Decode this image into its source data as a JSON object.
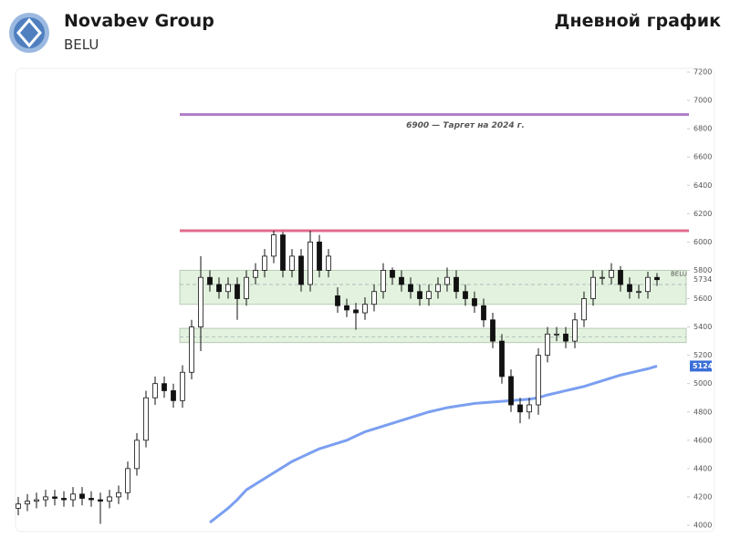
{
  "header": {
    "title": "Novabev Group",
    "ticker": "BELU",
    "chart_label": "Дневной график"
  },
  "chart_data": {
    "type": "candlestick",
    "symbol": "BELU",
    "ylim": [
      4000,
      7200
    ],
    "yticks": [
      4000,
      4200,
      4400,
      4600,
      4800,
      5000,
      5200,
      5400,
      5600,
      5800,
      6000,
      6200,
      6400,
      6600,
      6800,
      7000,
      7200
    ],
    "open": [
      4120,
      4150,
      4170,
      4180,
      4200,
      4190,
      4180,
      4220,
      4190,
      4180,
      4170,
      4200,
      4230,
      4400,
      4600,
      4900,
      5000,
      4950,
      4880,
      5080,
      5400,
      5750,
      5700,
      5650,
      5700,
      5600,
      5750,
      5800,
      5900,
      6050,
      5800,
      5900,
      5700,
      6000,
      5800,
      5620,
      5550,
      5520,
      5500,
      5560,
      5650,
      5800,
      5750,
      5700,
      5650,
      5600,
      5650,
      5700,
      5750,
      5650,
      5600,
      5550,
      5450,
      5300,
      5050,
      4850,
      4800,
      4850,
      5200,
      5350,
      5350,
      5300,
      5450,
      5600,
      5750,
      5750,
      5800,
      5700,
      5650,
      5650,
      5750
    ],
    "high": [
      4200,
      4220,
      4230,
      4250,
      4250,
      4240,
      4270,
      4270,
      4240,
      4230,
      4250,
      4280,
      4450,
      4650,
      4950,
      5050,
      5050,
      5000,
      5130,
      5450,
      5900,
      5800,
      5750,
      5750,
      5750,
      5800,
      5850,
      5950,
      6080,
      6070,
      5950,
      5950,
      6080,
      6050,
      5950,
      5680,
      5600,
      5570,
      5610,
      5700,
      5850,
      5820,
      5800,
      5750,
      5700,
      5700,
      5750,
      5820,
      5800,
      5700,
      5650,
      5600,
      5500,
      5350,
      5100,
      4900,
      4900,
      5250,
      5400,
      5400,
      5400,
      5500,
      5650,
      5800,
      5800,
      5850,
      5830,
      5750,
      5700,
      5790,
      5780
    ],
    "low": [
      4070,
      4100,
      4120,
      4130,
      4140,
      4130,
      4130,
      4140,
      4130,
      4010,
      4120,
      4150,
      4180,
      4350,
      4550,
      4850,
      4900,
      4830,
      4830,
      5030,
      5230,
      5650,
      5600,
      5600,
      5450,
      5550,
      5700,
      5750,
      5850,
      5750,
      5750,
      5650,
      5650,
      5750,
      5750,
      5500,
      5470,
      5380,
      5450,
      5510,
      5600,
      5700,
      5650,
      5600,
      5550,
      5550,
      5600,
      5650,
      5600,
      5550,
      5500,
      5400,
      5250,
      5000,
      4800,
      4720,
      4750,
      4780,
      5150,
      5300,
      5250,
      5250,
      5400,
      5550,
      5700,
      5700,
      5650,
      5600,
      5600,
      5600,
      5690
    ],
    "close": [
      4150,
      4170,
      4180,
      4200,
      4190,
      4180,
      4220,
      4190,
      4180,
      4170,
      4200,
      4230,
      4400,
      4600,
      4900,
      5000,
      4950,
      4880,
      5080,
      5400,
      5750,
      5700,
      5650,
      5700,
      5600,
      5750,
      5800,
      5900,
      6050,
      5800,
      5900,
      5700,
      6000,
      5800,
      5900,
      5550,
      5520,
      5500,
      5560,
      5650,
      5800,
      5750,
      5700,
      5650,
      5600,
      5650,
      5700,
      5750,
      5650,
      5600,
      5550,
      5450,
      5300,
      5050,
      4850,
      4800,
      4850,
      5200,
      5350,
      5350,
      5300,
      5450,
      5600,
      5750,
      5750,
      5800,
      5700,
      5650,
      5650,
      5750,
      5734
    ],
    "ma": {
      "color": "#7b9ff0",
      "values": [
        null,
        null,
        null,
        null,
        null,
        null,
        null,
        null,
        null,
        null,
        null,
        null,
        null,
        null,
        null,
        null,
        null,
        null,
        null,
        null,
        null,
        4020,
        4070,
        4120,
        4180,
        4250,
        4290,
        4330,
        4370,
        4410,
        4450,
        4480,
        4510,
        4540,
        4560,
        4580,
        4600,
        4630,
        4660,
        4680,
        4700,
        4720,
        4740,
        4760,
        4780,
        4800,
        4815,
        4830,
        4840,
        4850,
        4860,
        4865,
        4870,
        4875,
        4880,
        4885,
        4890,
        4900,
        4920,
        4935,
        4950,
        4965,
        4980,
        5000,
        5020,
        5040,
        5060,
        5075,
        5090,
        5105,
        5124
      ]
    },
    "levels": [
      {
        "value": 6900,
        "color": "#b07cc6",
        "label": "6900 — Таргет на 2024 г."
      },
      {
        "value": 6080,
        "color": "#e06c8c"
      }
    ],
    "zones": [
      {
        "from": 5560,
        "to": 5800,
        "mid": 5700
      },
      {
        "from": 5290,
        "to": 5390,
        "mid": 5330
      }
    ]
  }
}
